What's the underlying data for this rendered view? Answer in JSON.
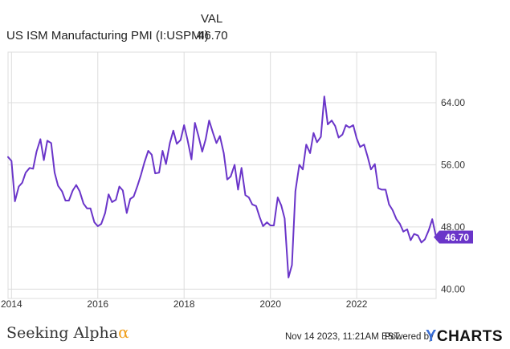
{
  "legend": {
    "header": "VAL",
    "series_name": "US ISM Manufacturing PMI (I:USPMI)",
    "series_value": "46.70"
  },
  "footer": {
    "brand": "Seeking Alpha",
    "brand_mark": "α",
    "timestamp": "Nov 14 2023, 11:21AM EST.",
    "powered_by": "Powered by",
    "logo_mark": "Y",
    "logo_text": "CHARTS"
  },
  "colors": {
    "line": "#6a35c9",
    "grid": "#dcdcdc",
    "axis_text": "#333333"
  },
  "chart_data": {
    "type": "line",
    "title": "US ISM Manufacturing PMI (I:USPMI)",
    "xlabel": "",
    "ylabel": "",
    "ylim": [
      38.8,
      70.5
    ],
    "yticks": [
      {
        "value": 40,
        "label": "40.00"
      },
      {
        "value": 48,
        "label": "48.00"
      },
      {
        "value": 56,
        "label": "56.00"
      },
      {
        "value": 64,
        "label": "64.00"
      }
    ],
    "xlim": [
      2013.92,
      2023.84
    ],
    "xticks": [
      {
        "value": 2014,
        "label": "2014"
      },
      {
        "value": 2016,
        "label": "2016"
      },
      {
        "value": 2018,
        "label": "2018"
      },
      {
        "value": 2020,
        "label": "2020"
      },
      {
        "value": 2022,
        "label": "2022"
      }
    ],
    "last_value_label": "46.70",
    "series": [
      {
        "name": "US ISM Manufacturing PMI",
        "x": [
          2013.92,
          2014.0,
          2014.08,
          2014.17,
          2014.25,
          2014.33,
          2014.42,
          2014.5,
          2014.58,
          2014.67,
          2014.75,
          2014.83,
          2014.92,
          2015.0,
          2015.08,
          2015.17,
          2015.25,
          2015.33,
          2015.42,
          2015.5,
          2015.58,
          2015.67,
          2015.75,
          2015.83,
          2015.92,
          2016.0,
          2016.08,
          2016.17,
          2016.25,
          2016.33,
          2016.42,
          2016.5,
          2016.58,
          2016.67,
          2016.75,
          2016.83,
          2016.92,
          2017.0,
          2017.08,
          2017.17,
          2017.25,
          2017.33,
          2017.42,
          2017.5,
          2017.58,
          2017.67,
          2017.75,
          2017.83,
          2017.92,
          2018.0,
          2018.08,
          2018.17,
          2018.25,
          2018.33,
          2018.42,
          2018.5,
          2018.58,
          2018.67,
          2018.75,
          2018.83,
          2018.92,
          2019.0,
          2019.08,
          2019.17,
          2019.25,
          2019.33,
          2019.42,
          2019.5,
          2019.58,
          2019.67,
          2019.75,
          2019.83,
          2019.92,
          2020.0,
          2020.08,
          2020.17,
          2020.25,
          2020.33,
          2020.42,
          2020.5,
          2020.58,
          2020.67,
          2020.75,
          2020.83,
          2020.92,
          2021.0,
          2021.08,
          2021.17,
          2021.25,
          2021.33,
          2021.42,
          2021.5,
          2021.58,
          2021.67,
          2021.75,
          2021.83,
          2021.92,
          2022.0,
          2022.08,
          2022.17,
          2022.25,
          2022.33,
          2022.42,
          2022.5,
          2022.58,
          2022.67,
          2022.75,
          2022.83,
          2022.92,
          2023.0,
          2023.08,
          2023.17,
          2023.25,
          2023.33,
          2023.42,
          2023.5,
          2023.58,
          2023.67,
          2023.75,
          2023.84
        ],
        "values": [
          57.0,
          56.5,
          51.3,
          53.2,
          53.7,
          55.0,
          55.6,
          55.5,
          57.7,
          59.3,
          56.6,
          59.1,
          58.8,
          55.0,
          53.3,
          52.6,
          51.4,
          51.4,
          52.7,
          53.4,
          52.6,
          51.0,
          50.4,
          50.4,
          48.6,
          48.1,
          48.4,
          49.8,
          52.2,
          51.2,
          51.5,
          53.2,
          52.7,
          49.8,
          51.6,
          51.9,
          53.3,
          54.7,
          56.3,
          57.8,
          57.3,
          54.9,
          55.0,
          57.8,
          56.1,
          58.8,
          60.4,
          58.7,
          59.2,
          61.1,
          59.2,
          56.7,
          61.4,
          59.8,
          57.7,
          59.3,
          61.7,
          60.1,
          58.8,
          59.7,
          57.5,
          54.1,
          54.5,
          56.0,
          52.8,
          55.6,
          52.1,
          51.8,
          50.9,
          50.7,
          49.3,
          48.1,
          48.6,
          48.2,
          48.2,
          51.8,
          50.8,
          49.1,
          41.5,
          43.1,
          52.6,
          56.0,
          55.4,
          58.6,
          57.5,
          60.1,
          58.9,
          59.6,
          64.8,
          61.2,
          61.7,
          61.0,
          59.5,
          59.9,
          61.1,
          60.8,
          61.1,
          59.4,
          58.3,
          58.6,
          57.1,
          55.4,
          56.1,
          53.0,
          52.8,
          52.8,
          50.9,
          50.2,
          49.0,
          48.4,
          47.4,
          47.7,
          46.3,
          47.1,
          46.9,
          46.0,
          46.4,
          47.6,
          49.0,
          46.7
        ]
      }
    ]
  }
}
